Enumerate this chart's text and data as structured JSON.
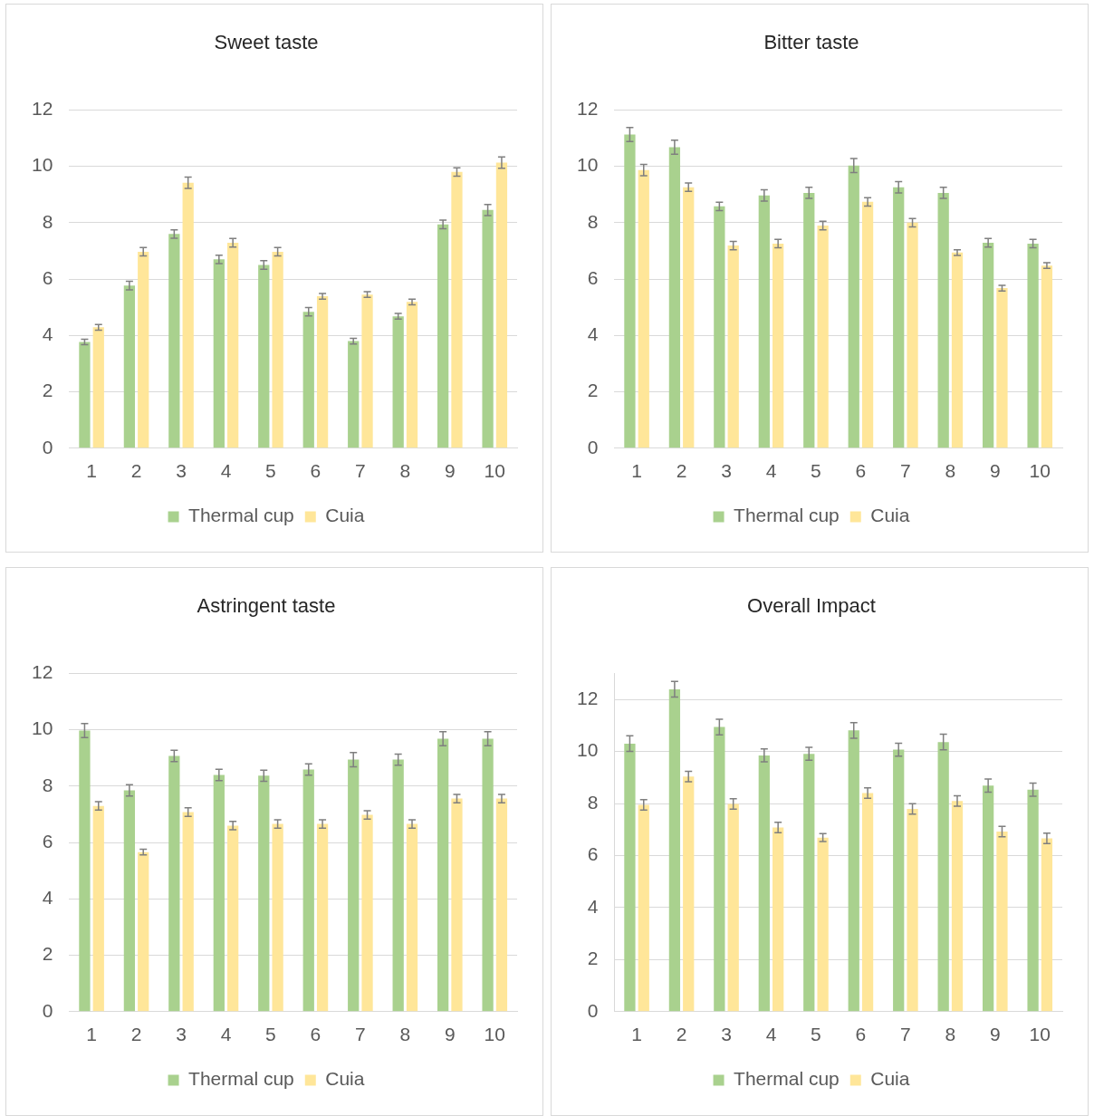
{
  "chart_data": [
    {
      "type": "bar",
      "title": "Sweet taste",
      "categories": [
        "1",
        "2",
        "3",
        "4",
        "5",
        "6",
        "7",
        "8",
        "9",
        "10"
      ],
      "ylim": [
        0,
        12
      ],
      "yticks": [
        0,
        2,
        4,
        6,
        8,
        10,
        12
      ],
      "grid": "y",
      "legend": "bottom",
      "series": [
        {
          "name": "Thermal cup",
          "color": "#a9d18e",
          "values": [
            3.77,
            5.77,
            7.6,
            6.7,
            6.5,
            4.84,
            3.8,
            4.68,
            7.94,
            8.45
          ],
          "errors": [
            0.1,
            0.15,
            0.15,
            0.15,
            0.15,
            0.15,
            0.1,
            0.1,
            0.15,
            0.2
          ]
        },
        {
          "name": "Cuia",
          "color": "#ffe699",
          "values": [
            4.29,
            6.97,
            9.42,
            7.29,
            6.97,
            5.39,
            5.45,
            5.19,
            9.8,
            10.13
          ],
          "errors": [
            0.1,
            0.15,
            0.2,
            0.15,
            0.15,
            0.1,
            0.1,
            0.1,
            0.15,
            0.2
          ]
        }
      ]
    },
    {
      "type": "bar",
      "title": "Bitter taste",
      "categories": [
        "1",
        "2",
        "3",
        "4",
        "5",
        "6",
        "7",
        "8",
        "9",
        "10"
      ],
      "ylim": [
        0,
        12
      ],
      "yticks": [
        0,
        2,
        4,
        6,
        8,
        10,
        12
      ],
      "grid": "y",
      "legend": "bottom",
      "series": [
        {
          "name": "Thermal cup",
          "color": "#a9d18e",
          "values": [
            11.13,
            10.68,
            8.58,
            8.97,
            9.06,
            10.03,
            9.26,
            9.06,
            7.29,
            7.26
          ],
          "errors": [
            0.25,
            0.25,
            0.15,
            0.2,
            0.2,
            0.25,
            0.2,
            0.2,
            0.15,
            0.15
          ]
        },
        {
          "name": "Cuia",
          "color": "#ffe699",
          "values": [
            9.87,
            9.26,
            7.19,
            7.26,
            7.9,
            8.74,
            8.0,
            6.94,
            5.68,
            6.48
          ],
          "errors": [
            0.2,
            0.15,
            0.15,
            0.15,
            0.15,
            0.15,
            0.15,
            0.1,
            0.1,
            0.1
          ]
        }
      ]
    },
    {
      "type": "bar",
      "title": "Astringent taste",
      "categories": [
        "1",
        "2",
        "3",
        "4",
        "5",
        "6",
        "7",
        "8",
        "9",
        "10"
      ],
      "ylim": [
        0,
        12
      ],
      "yticks": [
        0,
        2,
        4,
        6,
        8,
        10,
        12
      ],
      "grid": "y",
      "legend": "bottom",
      "series": [
        {
          "name": "Thermal cup",
          "color": "#a9d18e",
          "values": [
            9.97,
            7.85,
            9.07,
            8.4,
            8.37,
            8.59,
            8.94,
            8.94,
            9.68,
            9.68
          ],
          "errors": [
            0.25,
            0.2,
            0.2,
            0.2,
            0.2,
            0.2,
            0.25,
            0.2,
            0.25,
            0.25
          ]
        },
        {
          "name": "Cuia",
          "color": "#ffe699",
          "values": [
            7.3,
            5.66,
            7.08,
            6.6,
            6.66,
            6.66,
            6.98,
            6.66,
            7.56,
            7.56
          ],
          "errors": [
            0.15,
            0.1,
            0.15,
            0.15,
            0.15,
            0.15,
            0.15,
            0.15,
            0.15,
            0.15
          ]
        }
      ]
    },
    {
      "type": "bar",
      "title": "Overall Impact",
      "categories": [
        "1",
        "2",
        "3",
        "4",
        "5",
        "6",
        "7",
        "8",
        "9",
        "10"
      ],
      "ylim": [
        0,
        13
      ],
      "yticks": [
        0,
        2,
        4,
        6,
        8,
        10,
        12
      ],
      "grid": "y",
      "legend": "bottom",
      "series": [
        {
          "name": "Thermal cup",
          "color": "#a9d18e",
          "values": [
            10.3,
            12.39,
            10.94,
            9.85,
            9.91,
            10.81,
            10.07,
            10.36,
            8.69,
            8.53
          ],
          "errors": [
            0.3,
            0.3,
            0.3,
            0.25,
            0.25,
            0.3,
            0.25,
            0.3,
            0.25,
            0.25
          ]
        },
        {
          "name": "Cuia",
          "color": "#ffe699",
          "values": [
            7.95,
            9.04,
            7.98,
            7.08,
            6.69,
            8.4,
            7.79,
            8.1,
            6.92,
            6.66
          ],
          "errors": [
            0.2,
            0.2,
            0.2,
            0.2,
            0.15,
            0.2,
            0.2,
            0.2,
            0.2,
            0.2
          ]
        }
      ]
    }
  ]
}
